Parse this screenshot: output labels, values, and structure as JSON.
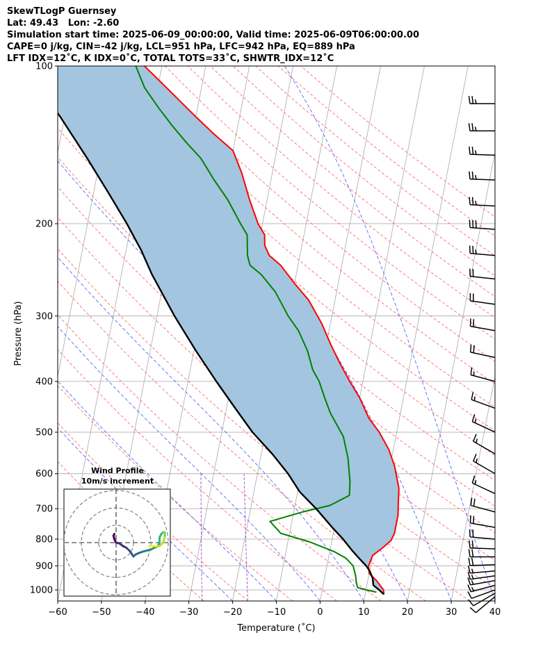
{
  "header": {
    "line1": "SkewTLogP Guernsey",
    "line2": "Lat: 49.43   Lon: -2.60",
    "line3": "Simulation start time: 2025-06-09_00:00:00, Valid time: 2025-06-09T06:00:00.00",
    "line4": "CAPE=0 j/kg, CIN=-42 j/kg, LCL=951 hPa, LFC=942 hPa, EQ=889 hPa",
    "line5": "LFT IDX=12˚C, K IDX=0˚C, TOTAL TOTS=33˚C, SHWTR_IDX=12˚C"
  },
  "inset": {
    "title_line1": "Wind Profile",
    "title_line2": "10m/s increment"
  },
  "chart_data": {
    "type": "skewt",
    "xlabel": "Temperature (˚C)",
    "ylabel": "Pressure (hPa)",
    "xlim": [
      -60,
      40
    ],
    "ylim": [
      1050,
      100
    ],
    "y_scale": "log",
    "x_ticks": [
      "−60",
      "−50",
      "−40",
      "−30",
      "−20",
      "−10",
      "0",
      "10",
      "20",
      "30",
      "40"
    ],
    "y_ticks": [
      "100",
      "200",
      "300",
      "400",
      "500",
      "600",
      "700",
      "800",
      "900",
      "1000"
    ],
    "grid": true,
    "series": [
      {
        "role": "temperature",
        "color": "#ff0000",
        "points": [
          [
            14.3,
            1020
          ],
          [
            14,
            1000
          ],
          [
            12,
            960
          ],
          [
            10,
            930
          ],
          [
            9.5,
            900
          ],
          [
            10,
            860
          ],
          [
            12,
            830
          ],
          [
            13.5,
            805
          ],
          [
            14,
            780
          ],
          [
            14,
            720
          ],
          [
            13.5,
            680
          ],
          [
            13,
            640
          ],
          [
            11,
            580
          ],
          [
            9,
            540
          ],
          [
            6,
            500
          ],
          [
            3,
            470
          ],
          [
            0,
            430
          ],
          [
            -3,
            400
          ],
          [
            -6,
            370
          ],
          [
            -9,
            340
          ],
          [
            -12,
            310
          ],
          [
            -16,
            280
          ],
          [
            -20,
            260
          ],
          [
            -24,
            240
          ],
          [
            -27,
            230
          ],
          [
            -28.5,
            220
          ],
          [
            -29,
            210
          ],
          [
            -31,
            200
          ],
          [
            -34,
            180
          ],
          [
            -37,
            160
          ],
          [
            -40,
            145
          ],
          [
            -45,
            135
          ],
          [
            -50,
            125
          ],
          [
            -58,
            110
          ],
          [
            -64,
            100
          ]
        ]
      },
      {
        "role": "dewpoint",
        "color": "#008000",
        "points": [
          [
            12.5,
            1010
          ],
          [
            10,
            1000
          ],
          [
            8,
            990
          ],
          [
            7.5,
            970
          ],
          [
            7,
            940
          ],
          [
            6,
            900
          ],
          [
            4,
            870
          ],
          [
            1,
            845
          ],
          [
            -5,
            810
          ],
          [
            -12,
            780
          ],
          [
            -15,
            740
          ],
          [
            -8,
            710
          ],
          [
            -2,
            690
          ],
          [
            2,
            660
          ],
          [
            1.5,
            620
          ],
          [
            0,
            560
          ],
          [
            -2,
            510
          ],
          [
            -6,
            460
          ],
          [
            -8,
            430
          ],
          [
            -10,
            400
          ],
          [
            -12,
            380
          ],
          [
            -14,
            350
          ],
          [
            -17,
            320
          ],
          [
            -20,
            300
          ],
          [
            -24,
            270
          ],
          [
            -28,
            250
          ],
          [
            -31,
            240
          ],
          [
            -32,
            230
          ],
          [
            -33,
            210
          ],
          [
            -35,
            200
          ],
          [
            -39,
            180
          ],
          [
            -43,
            165
          ],
          [
            -47,
            150
          ],
          [
            -51,
            140
          ],
          [
            -55,
            130
          ],
          [
            -59,
            120
          ],
          [
            -63,
            110
          ],
          [
            -66,
            100
          ]
        ]
      },
      {
        "role": "parcel",
        "color": "#000000",
        "points": [
          [
            14.3,
            1020
          ],
          [
            13,
            1000
          ],
          [
            11.5,
            980
          ],
          [
            11,
            950
          ],
          [
            10,
            920
          ],
          [
            9,
            900
          ],
          [
            7,
            870
          ],
          [
            5,
            840
          ],
          [
            2.5,
            800
          ],
          [
            -0.5,
            760
          ],
          [
            -5,
            700
          ],
          [
            -9.5,
            650
          ],
          [
            -13,
            600
          ],
          [
            -17.5,
            550
          ],
          [
            -23,
            500
          ],
          [
            -28,
            450
          ],
          [
            -33.5,
            400
          ],
          [
            -39.5,
            350
          ],
          [
            -46,
            300
          ],
          [
            -53,
            250
          ],
          [
            -56.5,
            225
          ],
          [
            -61,
            200
          ],
          [
            -66.5,
            175
          ],
          [
            -73,
            150
          ],
          [
            -81,
            125
          ],
          [
            -85,
            115
          ],
          [
            -90,
            100
          ]
        ]
      }
    ],
    "wind_barbs": {
      "color": "#000000",
      "levels": [
        {
          "p": 1030,
          "dir": 230,
          "spd": 8
        },
        {
          "p": 1015,
          "dir": 240,
          "spd": 10
        },
        {
          "p": 1000,
          "dir": 250,
          "spd": 12
        },
        {
          "p": 980,
          "dir": 255,
          "spd": 14
        },
        {
          "p": 960,
          "dir": 260,
          "spd": 14
        },
        {
          "p": 940,
          "dir": 262,
          "spd": 16
        },
        {
          "p": 920,
          "dir": 265,
          "spd": 16
        },
        {
          "p": 895,
          "dir": 268,
          "spd": 18
        },
        {
          "p": 865,
          "dir": 270,
          "spd": 18
        },
        {
          "p": 835,
          "dir": 272,
          "spd": 20
        },
        {
          "p": 800,
          "dir": 275,
          "spd": 20
        },
        {
          "p": 760,
          "dir": 280,
          "spd": 20
        },
        {
          "p": 710,
          "dir": 285,
          "spd": 18
        },
        {
          "p": 655,
          "dir": 295,
          "spd": 15
        },
        {
          "p": 600,
          "dir": 300,
          "spd": 15
        },
        {
          "p": 550,
          "dir": 300,
          "spd": 15
        },
        {
          "p": 500,
          "dir": 295,
          "spd": 15
        },
        {
          "p": 450,
          "dir": 290,
          "spd": 15
        },
        {
          "p": 400,
          "dir": 285,
          "spd": 15
        },
        {
          "p": 360,
          "dir": 282,
          "spd": 20
        },
        {
          "p": 320,
          "dir": 280,
          "spd": 20
        },
        {
          "p": 285,
          "dir": 278,
          "spd": 20
        },
        {
          "p": 255,
          "dir": 276,
          "spd": 20
        },
        {
          "p": 230,
          "dir": 275,
          "spd": 25
        },
        {
          "p": 205,
          "dir": 274,
          "spd": 30
        },
        {
          "p": 185,
          "dir": 273,
          "spd": 25
        },
        {
          "p": 165,
          "dir": 272,
          "spd": 25
        },
        {
          "p": 148,
          "dir": 272,
          "spd": 25
        },
        {
          "p": 133,
          "dir": 270,
          "spd": 25
        },
        {
          "p": 118,
          "dir": 270,
          "spd": 25
        }
      ]
    },
    "hodograph": {
      "rings_ms": [
        10,
        20,
        30
      ],
      "points_ms": [
        [
          -1,
          5
        ],
        [
          -1.5,
          4
        ],
        [
          -1,
          2
        ],
        [
          0,
          0
        ],
        [
          2,
          -0.5
        ],
        [
          4,
          -2
        ],
        [
          6,
          -3
        ],
        [
          8,
          -5
        ],
        [
          10,
          -8
        ],
        [
          11,
          -7
        ],
        [
          13,
          -6
        ],
        [
          16,
          -5
        ],
        [
          18,
          -4.5
        ],
        [
          20,
          -4
        ],
        [
          22,
          -3
        ],
        [
          24,
          -2
        ],
        [
          25,
          0
        ],
        [
          25,
          3
        ],
        [
          26,
          5
        ],
        [
          27,
          6
        ],
        [
          28,
          6
        ],
        [
          28,
          3
        ],
        [
          27,
          0
        ],
        [
          25,
          -2
        ],
        [
          23,
          -2
        ],
        [
          21,
          -2
        ],
        [
          19,
          -2
        ]
      ]
    }
  }
}
